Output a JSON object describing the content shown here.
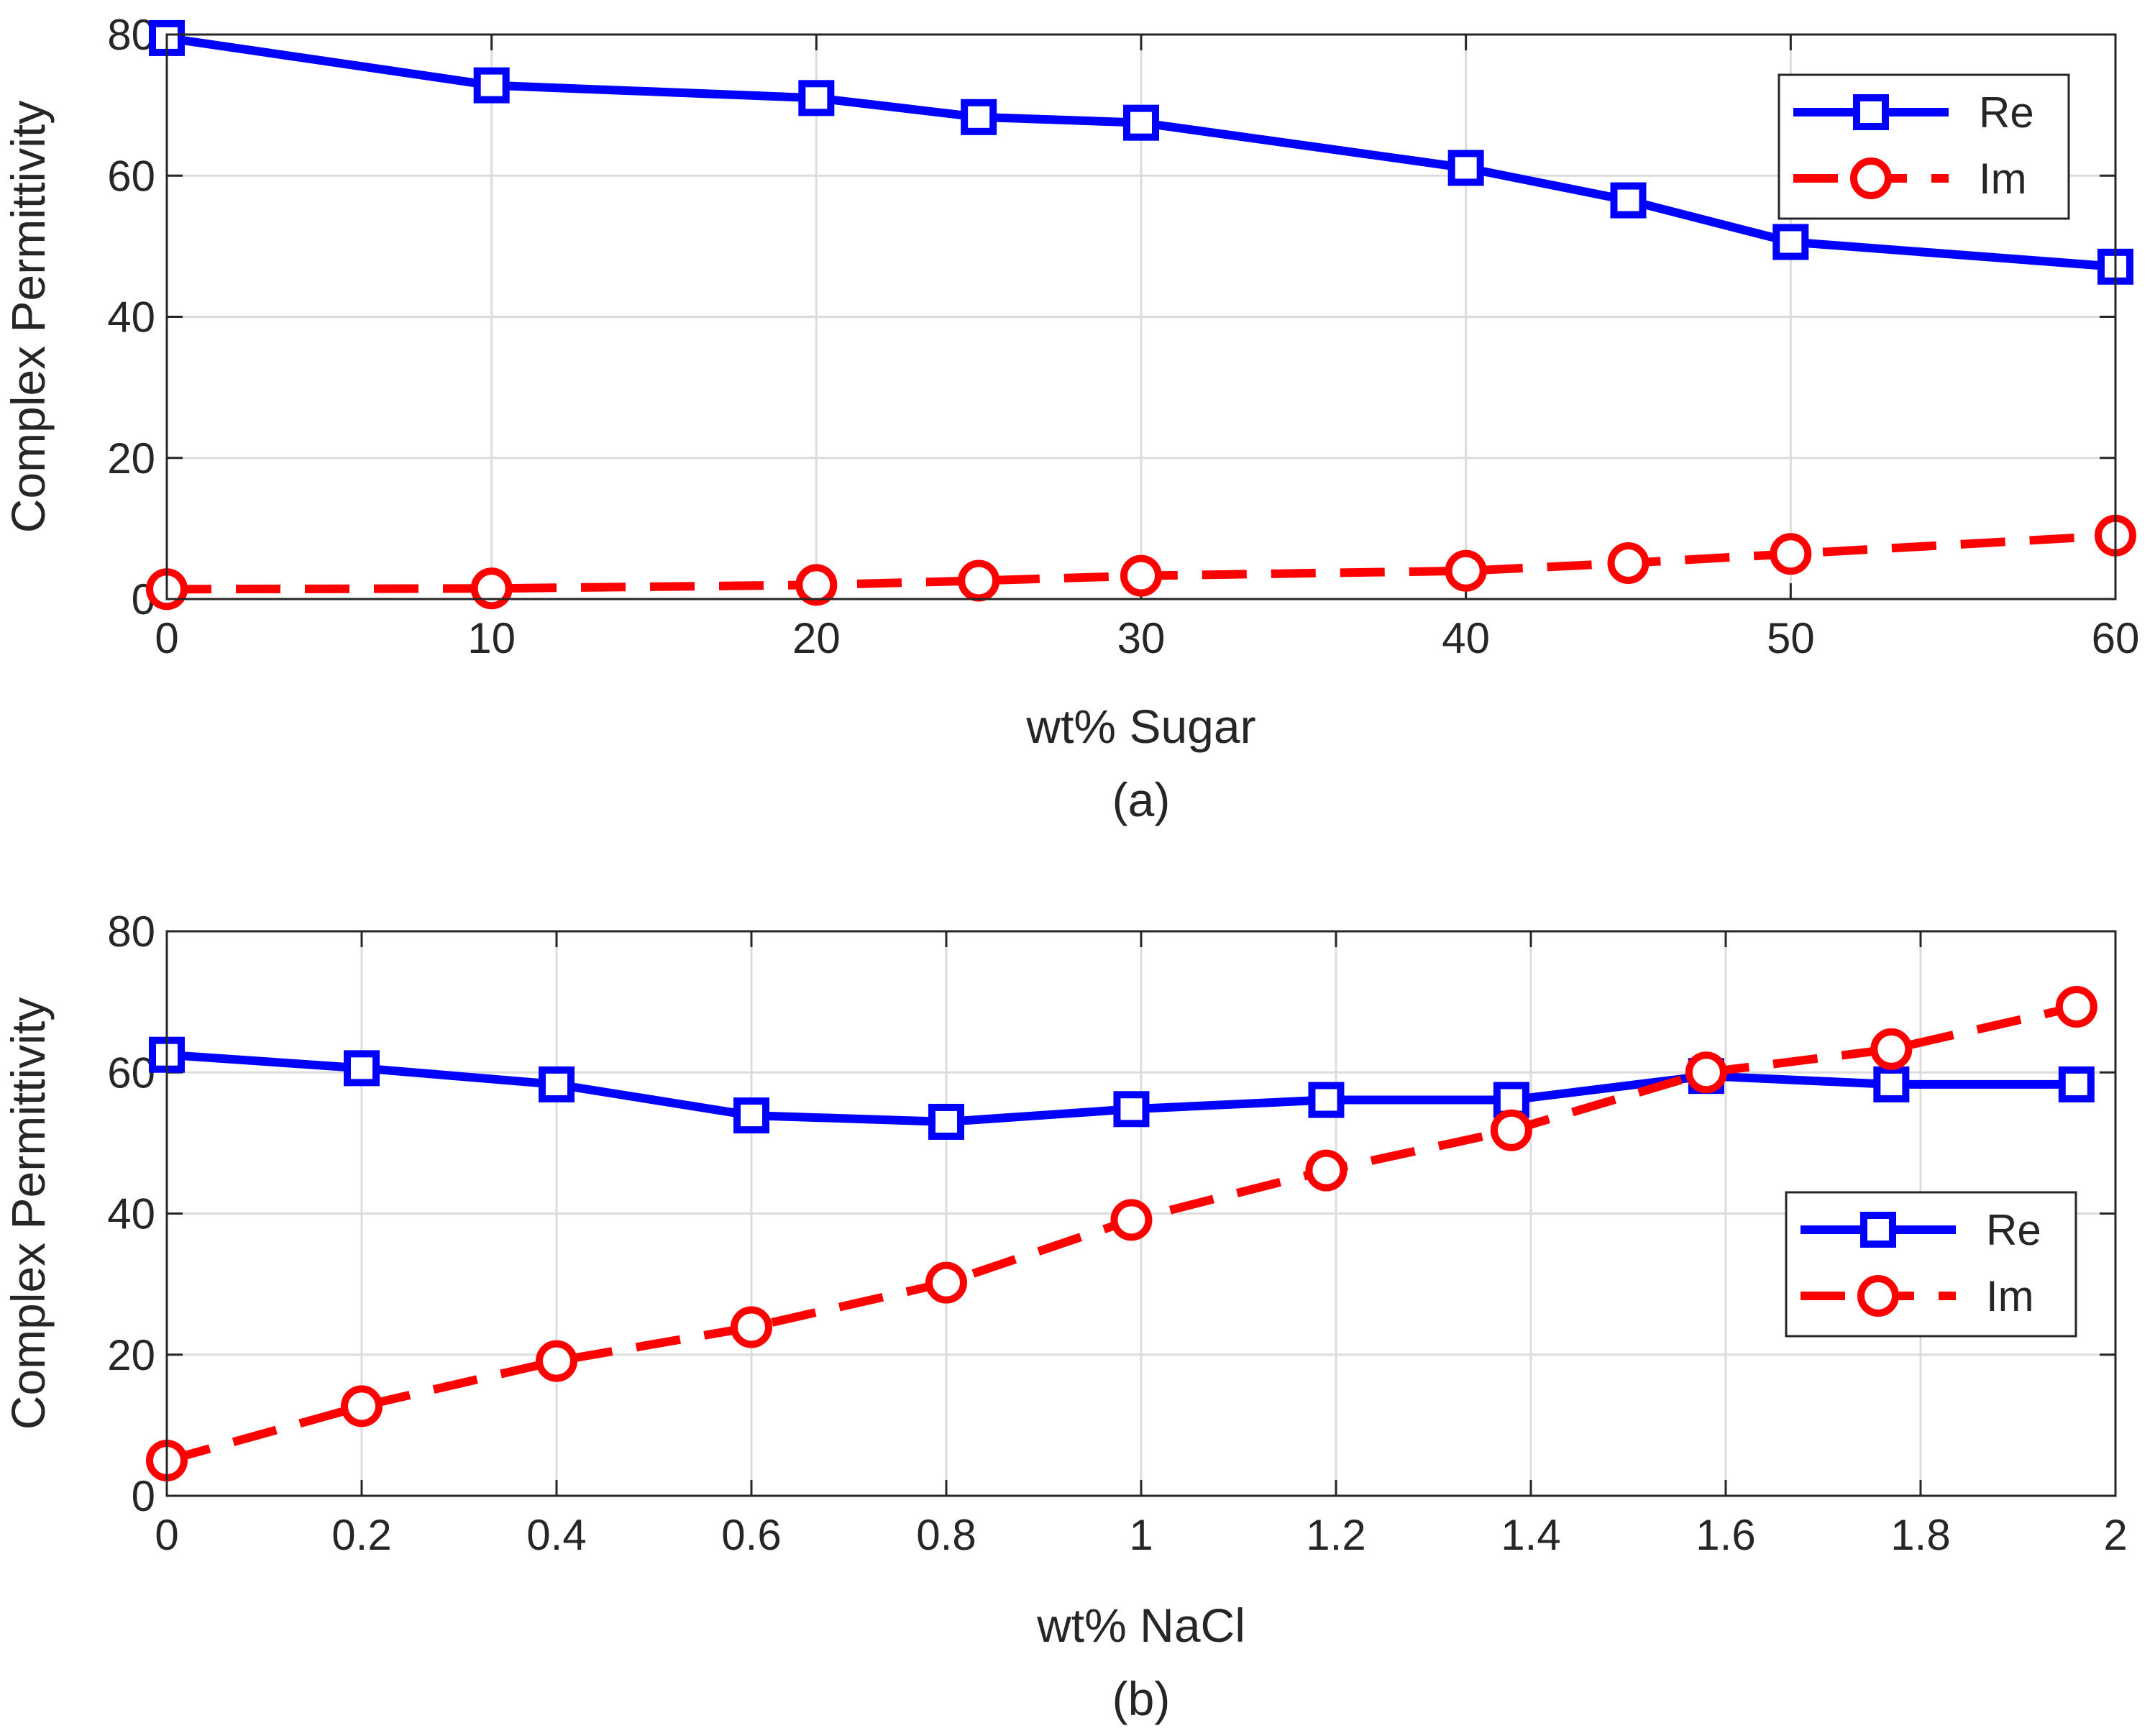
{
  "chart_data": [
    {
      "type": "line",
      "panel": "a",
      "caption": "(a)",
      "xlabel": "wt% Sugar",
      "ylabel": "Complex Permittivity",
      "xlim": [
        0,
        60
      ],
      "ylim": [
        0,
        80
      ],
      "xticks": [
        0,
        10,
        20,
        30,
        40,
        50,
        60
      ],
      "yticks": [
        0,
        20,
        40,
        60,
        80
      ],
      "grid": true,
      "legend_position": "top-right",
      "series": [
        {
          "name": "Re",
          "color": "#0000ff",
          "line_style": "solid",
          "marker": "square",
          "x": [
            0,
            10,
            20,
            25,
            30,
            40,
            45,
            50,
            60
          ],
          "y": [
            79.5,
            72.8,
            71.0,
            68.3,
            67.5,
            61.1,
            56.5,
            50.6,
            47.1
          ]
        },
        {
          "name": "Im",
          "color": "#ff0000",
          "line_style": "dashed",
          "marker": "circle",
          "x": [
            0,
            10,
            20,
            25,
            30,
            40,
            45,
            50,
            60
          ],
          "y": [
            1.4,
            1.5,
            2.0,
            2.6,
            3.3,
            4.0,
            5.1,
            6.4,
            9.0
          ]
        }
      ]
    },
    {
      "type": "line",
      "panel": "b",
      "caption": "(b)",
      "xlabel": "wt% NaCl",
      "ylabel": "Complex Permittivity",
      "xlim": [
        0,
        2
      ],
      "ylim": [
        0,
        80
      ],
      "xticks": [
        0,
        0.2,
        0.4,
        0.6,
        0.8,
        1,
        1.2,
        1.4,
        1.6,
        1.8,
        2
      ],
      "yticks": [
        0,
        20,
        40,
        60,
        80
      ],
      "grid": true,
      "legend_position": "middle-right",
      "series": [
        {
          "name": "Re",
          "color": "#0000ff",
          "line_style": "solid",
          "marker": "square",
          "x": [
            0,
            0.2,
            0.4,
            0.6,
            0.8,
            0.99,
            1.19,
            1.38,
            1.58,
            1.77,
            1.96
          ],
          "y": [
            62.5,
            60.6,
            58.3,
            53.9,
            53.0,
            54.8,
            56.1,
            56.1,
            59.5,
            58.3,
            58.3
          ]
        },
        {
          "name": "Im",
          "color": "#ff0000",
          "line_style": "dashed",
          "marker": "circle",
          "x": [
            0,
            0.2,
            0.4,
            0.6,
            0.8,
            0.99,
            1.19,
            1.38,
            1.58,
            1.77,
            1.96
          ],
          "y": [
            5.0,
            12.7,
            19.1,
            23.9,
            30.2,
            39.1,
            46.1,
            51.8,
            60.0,
            63.3,
            69.3
          ]
        }
      ]
    }
  ]
}
